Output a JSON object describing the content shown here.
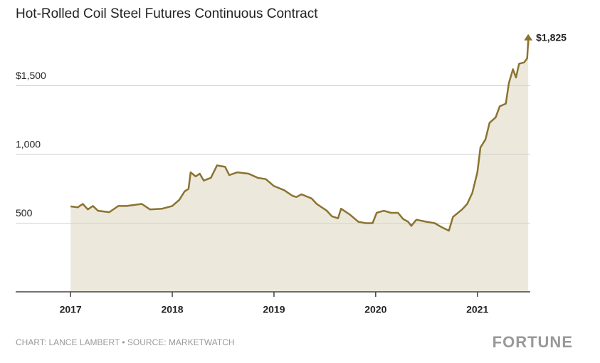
{
  "chart_data": {
    "type": "area",
    "title": "Hot-Rolled Coil Steel Futures Continuous Contract",
    "source": "CHART: LANCE LAMBERT • SOURCE: MARKETWATCH",
    "brand": "FORTUNE",
    "xlim": [
      2016.46,
      2021.52
    ],
    "xticks": [
      2017,
      2018,
      2019,
      2020,
      2021
    ],
    "ylim": [
      0,
      2000
    ],
    "yticks": [
      500,
      {
        "value": 1000,
        "label": "1,000"
      },
      {
        "value": 1500,
        "label": "$1,500"
      }
    ],
    "grid": true,
    "series": [
      {
        "color": "#8b7330",
        "fill": "#ece9dc",
        "x": [
          2017.0,
          2017.07,
          2017.12,
          2017.17,
          2017.22,
          2017.27,
          2017.38,
          2017.47,
          2017.55,
          2017.7,
          2017.78,
          2017.9,
          2018.0,
          2018.07,
          2018.12,
          2018.16,
          2018.18,
          2018.23,
          2018.27,
          2018.31,
          2018.38,
          2018.44,
          2018.52,
          2018.56,
          2018.64,
          2018.75,
          2018.84,
          2018.92,
          2019.0,
          2019.1,
          2019.18,
          2019.22,
          2019.27,
          2019.37,
          2019.42,
          2019.52,
          2019.57,
          2019.63,
          2019.66,
          2019.75,
          2019.83,
          2019.9,
          2019.97,
          2020.01,
          2020.08,
          2020.15,
          2020.22,
          2020.27,
          2020.32,
          2020.35,
          2020.4,
          2020.5,
          2020.58,
          2020.65,
          2020.72,
          2020.76,
          2020.85,
          2020.9,
          2020.95,
          2021.0,
          2021.03,
          2021.08,
          2021.12,
          2021.18,
          2021.22,
          2021.28,
          2021.31,
          2021.35,
          2021.38,
          2021.41,
          2021.46,
          2021.49,
          2021.5
        ],
        "values": [
          622,
          615,
          640,
          600,
          625,
          590,
          580,
          625,
          625,
          640,
          600,
          605,
          625,
          670,
          730,
          750,
          870,
          840,
          860,
          810,
          830,
          920,
          910,
          850,
          870,
          860,
          830,
          820,
          770,
          740,
          700,
          690,
          710,
          680,
          640,
          590,
          550,
          535,
          605,
          560,
          510,
          500,
          500,
          575,
          590,
          575,
          575,
          530,
          510,
          480,
          525,
          510,
          500,
          470,
          445,
          545,
          600,
          640,
          720,
          870,
          1050,
          1110,
          1230,
          1270,
          1350,
          1370,
          1520,
          1620,
          1560,
          1660,
          1670,
          1700,
          1825
        ]
      }
    ],
    "annotations": [
      {
        "text": "$1,825",
        "x": 2021.5,
        "y": 1825
      }
    ]
  }
}
